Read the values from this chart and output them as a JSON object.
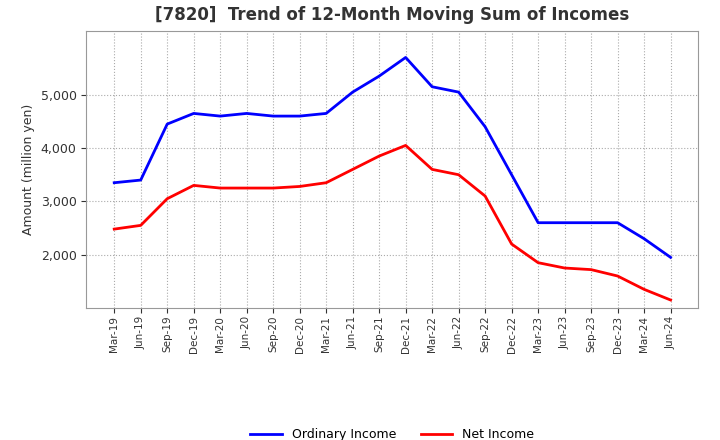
{
  "title": "[7820]  Trend of 12-Month Moving Sum of Incomes",
  "ylabel": "Amount (million yen)",
  "x_labels": [
    "Mar-19",
    "Jun-19",
    "Sep-19",
    "Dec-19",
    "Mar-20",
    "Jun-20",
    "Sep-20",
    "Dec-20",
    "Mar-21",
    "Jun-21",
    "Sep-21",
    "Dec-21",
    "Mar-22",
    "Jun-22",
    "Sep-22",
    "Dec-22",
    "Mar-23",
    "Jun-23",
    "Sep-23",
    "Dec-23",
    "Mar-24",
    "Jun-24"
  ],
  "ordinary_income": [
    3350,
    3400,
    4450,
    4650,
    4600,
    4650,
    4600,
    4600,
    4650,
    5050,
    5350,
    5700,
    5150,
    5050,
    4400,
    3500,
    2600,
    2600,
    2600,
    2600,
    2300,
    1950
  ],
  "net_income": [
    2480,
    2550,
    3050,
    3300,
    3250,
    3250,
    3250,
    3280,
    3350,
    3600,
    3850,
    4050,
    3600,
    3500,
    3100,
    2200,
    1850,
    1750,
    1720,
    1600,
    1350,
    1150
  ],
  "ordinary_color": "#0000ff",
  "net_color": "#ff0000",
  "grid_color": "#aaaaaa",
  "background_color": "#ffffff",
  "ylim": [
    1000,
    6200
  ],
  "yticks": [
    2000,
    3000,
    4000,
    5000
  ],
  "legend_labels": [
    "Ordinary Income",
    "Net Income"
  ]
}
